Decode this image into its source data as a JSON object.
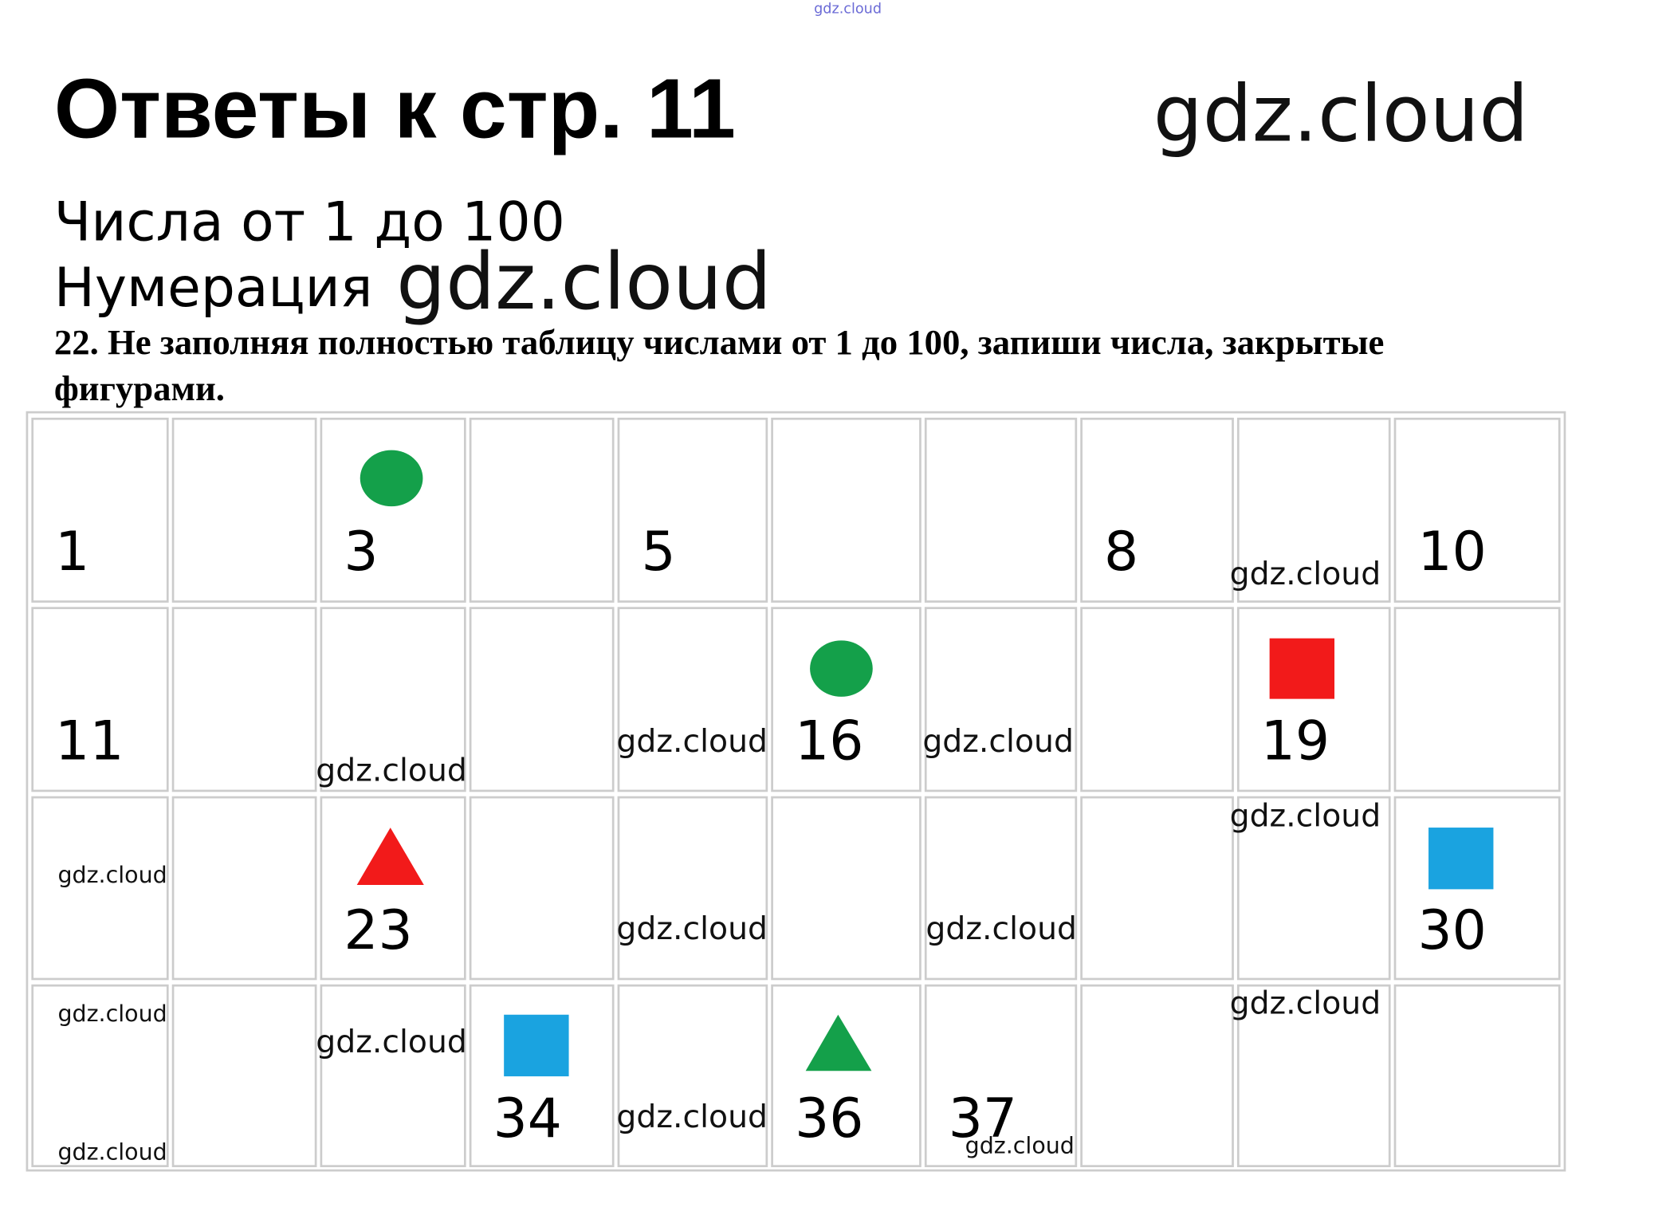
{
  "header": {
    "title": "Ответы к стр. 11",
    "subtitle": "Числа от 1 до 100",
    "section": "Нумерация"
  },
  "task": {
    "lines": [
      "22. Не заполняя полностью таблицу числами от 1 до 100, запиши числа, закрытые",
      "фигурами."
    ]
  },
  "table": {
    "rows": [
      [
        1,
        null,
        3,
        null,
        5,
        null,
        null,
        8,
        null,
        10
      ],
      [
        11,
        null,
        null,
        null,
        null,
        16,
        null,
        null,
        19,
        null
      ],
      [
        null,
        null,
        23,
        null,
        null,
        null,
        null,
        null,
        null,
        30
      ],
      [
        null,
        null,
        null,
        34,
        null,
        36,
        37,
        null,
        null,
        null
      ]
    ]
  },
  "watermarks": [
    "gdz.cloud",
    "gdz.cloud",
    "gdz.cloud",
    "gdz.cloud",
    "gdz.cloud",
    "gdz.cloud",
    "gdz.cloud",
    "gdz.cloud",
    "gdz.cloud",
    "gdz.cloud",
    "gdz.cloud",
    "gdz.cloud",
    "gdz.cloud",
    "gdz.cloud",
    "gdz.cloud",
    "gdz.cloud",
    "gdz.cloud"
  ]
}
